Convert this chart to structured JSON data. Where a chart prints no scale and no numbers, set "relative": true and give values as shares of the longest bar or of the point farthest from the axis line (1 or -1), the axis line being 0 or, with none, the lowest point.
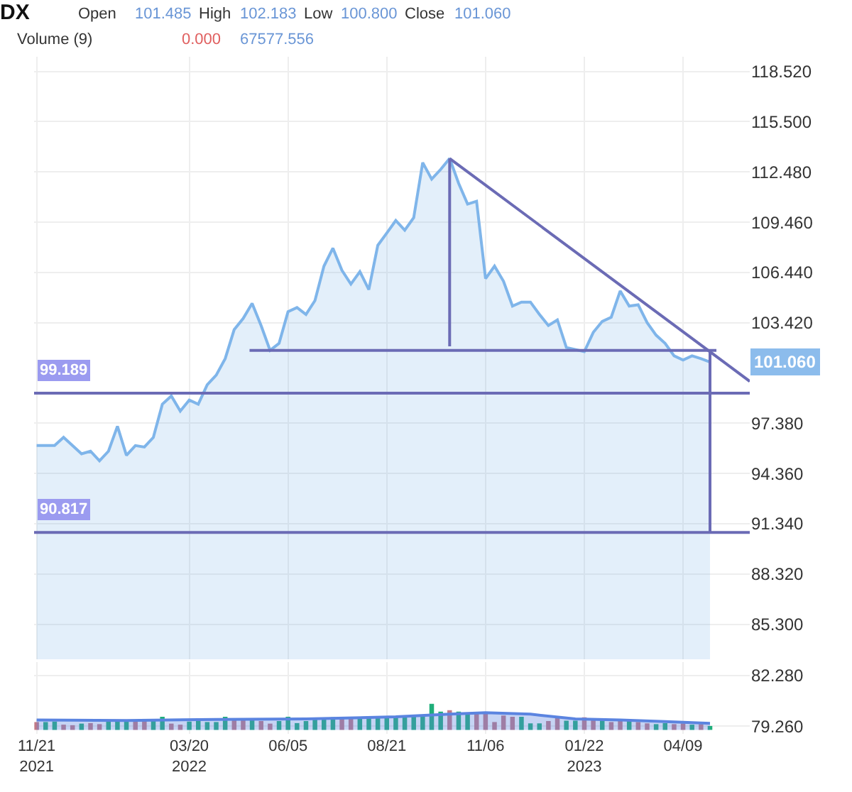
{
  "chart_data": [
    {
      "type": "area",
      "title": "DX",
      "annotations": [
        "Open",
        "101.485",
        "High",
        "102.183",
        "Low",
        "100.800",
        "Close",
        "101.060",
        "Volume (9)",
        "0.000",
        "67577.556",
        "101.060"
      ],
      "tick_labels": "y",
      "xlim": [
        "2021-11-19",
        "2023-05-31"
      ],
      "ylim": [
        83.2,
        119.4
      ],
      "yticks": [
        {
          "value": 85.3,
          "label": "85.300"
        },
        {
          "value": 88.32,
          "label": "88.320"
        },
        {
          "value": 91.34,
          "label": "91.340"
        },
        {
          "value": 94.36,
          "label": "94.360"
        },
        {
          "value": 97.38,
          "label": "97.380"
        },
        {
          "value": 103.42,
          "label": "103.420"
        },
        {
          "value": 106.44,
          "label": "106.440"
        },
        {
          "value": 109.46,
          "label": "109.460"
        },
        {
          "value": 112.48,
          "label": "112.480"
        },
        {
          "value": 115.5,
          "label": "115.500"
        },
        {
          "value": 118.52,
          "label": "118.520"
        }
      ],
      "grid": true,
      "ref_lines": [
        {
          "axis": "y",
          "value": 99.189,
          "label": "99.189",
          "color": "#6b6bb5"
        },
        {
          "axis": "y",
          "value": 90.817,
          "label": "90.817",
          "color": "#6b6bb5"
        }
      ],
      "series": [
        {
          "color": "#7fb5ea",
          "x": [
            "2021-11-21",
            "2021-12-05",
            "2021-12-12",
            "2021-12-26",
            "2022-01-02",
            "2022-01-09",
            "2022-01-16",
            "2022-01-23",
            "2022-01-30",
            "2022-02-06",
            "2022-02-13",
            "2022-02-20",
            "2022-02-27",
            "2022-03-06",
            "2022-03-13",
            "2022-03-20",
            "2022-03-27",
            "2022-04-03",
            "2022-04-10",
            "2022-04-17",
            "2022-04-24",
            "2022-05-01",
            "2022-05-08",
            "2022-05-15",
            "2022-05-22",
            "2022-05-29",
            "2022-06-05",
            "2022-06-12",
            "2022-06-19",
            "2022-06-26",
            "2022-07-03",
            "2022-07-10",
            "2022-07-17",
            "2022-07-24",
            "2022-07-31",
            "2022-08-07",
            "2022-08-14",
            "2022-08-21",
            "2022-08-28",
            "2022-09-04",
            "2022-09-11",
            "2022-09-18",
            "2022-09-25",
            "2022-10-02",
            "2022-10-09",
            "2022-10-16",
            "2022-10-23",
            "2022-10-30",
            "2022-11-06",
            "2022-11-13",
            "2022-11-20",
            "2022-11-27",
            "2022-12-04",
            "2022-12-11",
            "2022-12-18",
            "2022-12-25",
            "2023-01-01",
            "2023-01-08",
            "2023-01-22",
            "2023-01-29",
            "2023-02-05",
            "2023-02-12",
            "2023-02-19",
            "2023-02-26",
            "2023-03-05",
            "2023-03-12",
            "2023-03-19",
            "2023-03-26",
            "2023-04-02",
            "2023-04-09",
            "2023-04-16",
            "2023-04-23",
            "2023-04-30"
          ],
          "values": [
            96.04,
            96.04,
            96.53,
            95.54,
            95.7,
            95.12,
            95.7,
            97.2,
            95.45,
            96.04,
            95.95,
            96.53,
            98.52,
            99.02,
            98.11,
            98.77,
            98.52,
            99.69,
            100.27,
            101.26,
            103.0,
            103.67,
            104.58,
            103.25,
            101.76,
            102.18,
            104.08,
            104.33,
            103.92,
            104.75,
            106.82,
            107.9,
            106.57,
            105.74,
            106.49,
            105.41,
            108.07,
            108.81,
            109.56,
            108.98,
            109.73,
            113.04,
            112.05,
            112.63,
            113.29,
            111.8,
            110.55,
            110.72,
            106.07,
            106.82,
            105.91,
            104.42,
            104.66,
            104.66,
            103.92,
            103.25,
            103.59,
            101.93,
            101.68,
            102.84,
            103.5,
            103.75,
            105.33,
            104.42,
            104.5,
            103.42,
            102.67,
            102.18,
            101.43,
            101.18,
            101.43,
            101.26,
            101.06
          ]
        },
        {
          "type": "line",
          "color": "#6b6bb5",
          "x": [
            "2022-10-09",
            "2023-05-31"
          ],
          "values": [
            113.29,
            99.9
          ]
        },
        {
          "type": "line",
          "color": "#6b6bb5",
          "x": [
            "2022-10-09",
            "2022-10-09"
          ],
          "values": [
            113.29,
            102.0
          ]
        },
        {
          "type": "line",
          "color": "#6b6bb5",
          "x": [
            "2022-05-06",
            "2023-05-05"
          ],
          "values": [
            101.76,
            101.76
          ]
        },
        {
          "type": "line",
          "color": "#6b6bb5",
          "x": [
            "2023-04-30",
            "2023-04-30"
          ],
          "values": [
            101.76,
            90.817
          ]
        }
      ]
    },
    {
      "type": "bar",
      "relative": true,
      "grid": "x",
      "xlim": [
        "2021-11-19",
        "2023-05-31"
      ],
      "xticks": [
        {
          "value": "2021-11-21",
          "label": "11/21\n2021"
        },
        {
          "value": "2022-03-20",
          "label": "03/20\n2022"
        },
        {
          "value": "2022-06-05",
          "label": "06/05"
        },
        {
          "value": "2022-08-21",
          "label": "08/21"
        },
        {
          "value": "2022-11-06",
          "label": "11/06"
        },
        {
          "value": "2023-01-22",
          "label": "01/22\n2023"
        },
        {
          "value": "2023-04-09",
          "label": "04/09"
        }
      ],
      "y2lim": [
        78.8,
        83.1
      ],
      "y2ticks": [
        {
          "value": 79.26,
          "label": "79.260"
        },
        {
          "value": 82.28,
          "label": "82.280"
        }
      ],
      "x": [
        "2021-11-21",
        "2021-11-28",
        "2021-12-05",
        "2021-12-12",
        "2021-12-19",
        "2021-12-26",
        "2022-01-02",
        "2022-01-09",
        "2022-01-16",
        "2022-01-23",
        "2022-01-30",
        "2022-02-06",
        "2022-02-13",
        "2022-02-20",
        "2022-02-27",
        "2022-03-06",
        "2022-03-13",
        "2022-03-20",
        "2022-03-27",
        "2022-04-03",
        "2022-04-10",
        "2022-04-17",
        "2022-04-24",
        "2022-05-01",
        "2022-05-08",
        "2022-05-15",
        "2022-05-22",
        "2022-05-29",
        "2022-06-05",
        "2022-06-12",
        "2022-06-19",
        "2022-06-26",
        "2022-07-03",
        "2022-07-10",
        "2022-07-17",
        "2022-07-24",
        "2022-07-31",
        "2022-08-07",
        "2022-08-14",
        "2022-08-21",
        "2022-08-28",
        "2022-09-04",
        "2022-09-11",
        "2022-09-18",
        "2022-09-25",
        "2022-10-02",
        "2022-10-09",
        "2022-10-16",
        "2022-10-23",
        "2022-10-30",
        "2022-11-06",
        "2022-11-13",
        "2022-11-20",
        "2022-11-27",
        "2022-12-04",
        "2022-12-11",
        "2022-12-18",
        "2022-12-25",
        "2023-01-01",
        "2023-01-08",
        "2023-01-15",
        "2023-01-22",
        "2023-01-29",
        "2023-02-05",
        "2023-02-12",
        "2023-02-19",
        "2023-02-26",
        "2023-03-05",
        "2023-03-12",
        "2023-03-19",
        "2023-03-26",
        "2023-04-02",
        "2023-04-09",
        "2023-04-16",
        "2023-04-23",
        "2023-04-30"
      ],
      "series": [
        {
          "values": [
            0.3,
            0.3,
            0.32,
            0.2,
            0.18,
            0.24,
            0.26,
            0.22,
            0.32,
            0.34,
            0.36,
            0.36,
            0.4,
            0.42,
            0.5,
            0.24,
            0.2,
            0.32,
            0.34,
            0.3,
            0.3,
            0.5,
            0.38,
            0.38,
            0.38,
            0.34,
            0.24,
            0.34,
            0.5,
            0.26,
            0.34,
            0.45,
            0.45,
            0.48,
            0.5,
            0.5,
            0.5,
            0.5,
            0.48,
            0.5,
            0.5,
            0.55,
            0.55,
            0.55,
            1.0,
            0.7,
            0.75,
            0.7,
            0.65,
            0.65,
            0.65,
            0.3,
            0.55,
            0.5,
            0.5,
            0.25,
            0.25,
            0.34,
            0.45,
            0.35,
            0.35,
            0.48,
            0.38,
            0.36,
            0.3,
            0.35,
            0.38,
            0.3,
            0.25,
            0.22,
            0.26,
            0.22,
            0.25,
            0.2,
            0.22,
            0.15
          ],
          "colors": [
            "#c27a86",
            "#1fae7a",
            "#1fae7a",
            "#c27a86",
            "#c27a86",
            "#1fae7a",
            "#c27a86",
            "#c27a86",
            "#1fae7a",
            "#1fae7a",
            "#1fae7a",
            "#c27a86",
            "#c27a86",
            "#1fae7a",
            "#1fae7a",
            "#c27a86",
            "#c27a86",
            "#1fae7a",
            "#1fae7a",
            "#1fae7a",
            "#1fae7a",
            "#1fae7a",
            "#c27a86",
            "#c27a86",
            "#1fae7a",
            "#c27a86",
            "#c27a86",
            "#1fae7a",
            "#1fae7a",
            "#1fae7a",
            "#1fae7a",
            "#1fae7a",
            "#1fae7a",
            "#1fae7a",
            "#c27a86",
            "#c27a86",
            "#1fae7a",
            "#1fae7a",
            "#1fae7a",
            "#1fae7a",
            "#1fae7a",
            "#1fae7a",
            "#1fae7a",
            "#1fae7a",
            "#1fae7a",
            "#1fae7a",
            "#c27a86",
            "#1fae7a",
            "#1fae7a",
            "#c27a86",
            "#c27a86",
            "#c27a86",
            "#c27a86",
            "#c27a86",
            "#1fae7a",
            "#1fae7a",
            "#1fae7a",
            "#c27a86",
            "#c27a86",
            "#1fae7a",
            "#1fae7a",
            "#c27a86",
            "#c27a86",
            "#1fae7a",
            "#c27a86",
            "#c27a86",
            "#1fae7a",
            "#c27a86",
            "#c27a86",
            "#1fae7a",
            "#1fae7a",
            "#c27a86",
            "#c27a86",
            "#1fae7a",
            "#c27a86",
            "#1fae7a"
          ]
        },
        {
          "type": "area",
          "color": "#5b84e0",
          "x": [
            "2021-11-21",
            "2022-01-30",
            "2022-04-10",
            "2022-06-19",
            "2022-08-28",
            "2022-10-09",
            "2022-11-06",
            "2022-12-11",
            "2023-01-15",
            "2023-02-19",
            "2023-03-26",
            "2023-04-30"
          ],
          "values": [
            0.38,
            0.36,
            0.4,
            0.42,
            0.5,
            0.6,
            0.66,
            0.6,
            0.42,
            0.38,
            0.32,
            0.25
          ]
        }
      ]
    }
  ]
}
